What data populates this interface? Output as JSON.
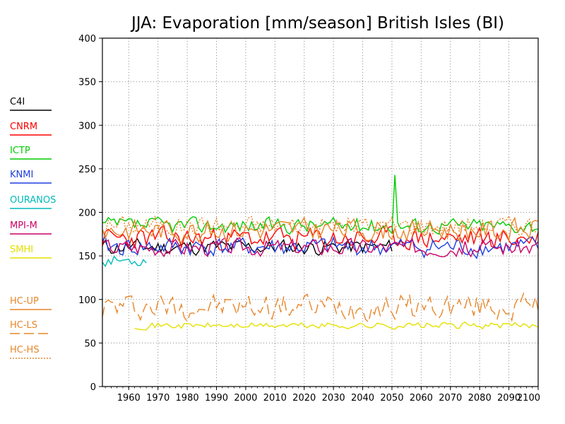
{
  "chart_data": {
    "type": "line",
    "title": "JJA: Evaporation [mm/season] British Isles (BI)",
    "xlabel": "",
    "ylabel": "",
    "xlim": [
      1951,
      2100
    ],
    "ylim": [
      0,
      400
    ],
    "x_ticks": [
      1960,
      1970,
      1980,
      1990,
      2000,
      2010,
      2020,
      2030,
      2040,
      2050,
      2060,
      2070,
      2080,
      2090,
      2100
    ],
    "y_ticks": [
      0,
      50,
      100,
      150,
      200,
      250,
      300,
      350,
      400
    ],
    "grid": true,
    "legend_position": "left",
    "series": [
      {
        "name": "C4I",
        "color": "#000000",
        "dash": "solid",
        "start": 1951,
        "end": 2050,
        "base": 160,
        "amp": 12,
        "seed": 11
      },
      {
        "name": "CNRM",
        "color": "#ff0000",
        "dash": "solid",
        "start": 1951,
        "end": 2100,
        "base": 170,
        "amp": 17,
        "seed": 23
      },
      {
        "name": "ICTP",
        "color": "#00cc00",
        "dash": "solid",
        "start": 1951,
        "end": 2100,
        "base": 185,
        "amp": 12,
        "seed": 37,
        "spike_year": 2051,
        "spike_value": 243
      },
      {
        "name": "KNMI",
        "color": "#1f3fe0",
        "dash": "solid",
        "start": 1951,
        "end": 2100,
        "base": 160,
        "amp": 15,
        "seed": 41
      },
      {
        "name": "OURANOS",
        "color": "#00bbbb",
        "dash": "solid",
        "start": 1951,
        "end": 1966,
        "base": 145,
        "amp": 9,
        "seed": 53
      },
      {
        "name": "MPI-M",
        "color": "#cc0066",
        "dash": "solid",
        "start": 1951,
        "end": 2100,
        "base": 160,
        "amp": 13,
        "seed": 67
      },
      {
        "name": "SMHI",
        "color": "#e5e000",
        "dash": "solid",
        "start": 1962,
        "end": 2100,
        "base": 70,
        "amp": 5,
        "seed": 71
      },
      {
        "name": "HC-UP",
        "color": "#e8862a",
        "dash": "solid",
        "start": 1951,
        "end": 2100,
        "base": 180,
        "amp": 17,
        "seed": 83
      },
      {
        "name": "HC-LS",
        "color": "#e8862a",
        "dash": "long",
        "start": 1951,
        "end": 2100,
        "base": 92,
        "amp": 20,
        "seed": 97
      },
      {
        "name": "HC-HS",
        "color": "#e8862a",
        "dash": "dot",
        "start": 1951,
        "end": 2100,
        "base": 185,
        "amp": 15,
        "seed": 101
      }
    ]
  }
}
